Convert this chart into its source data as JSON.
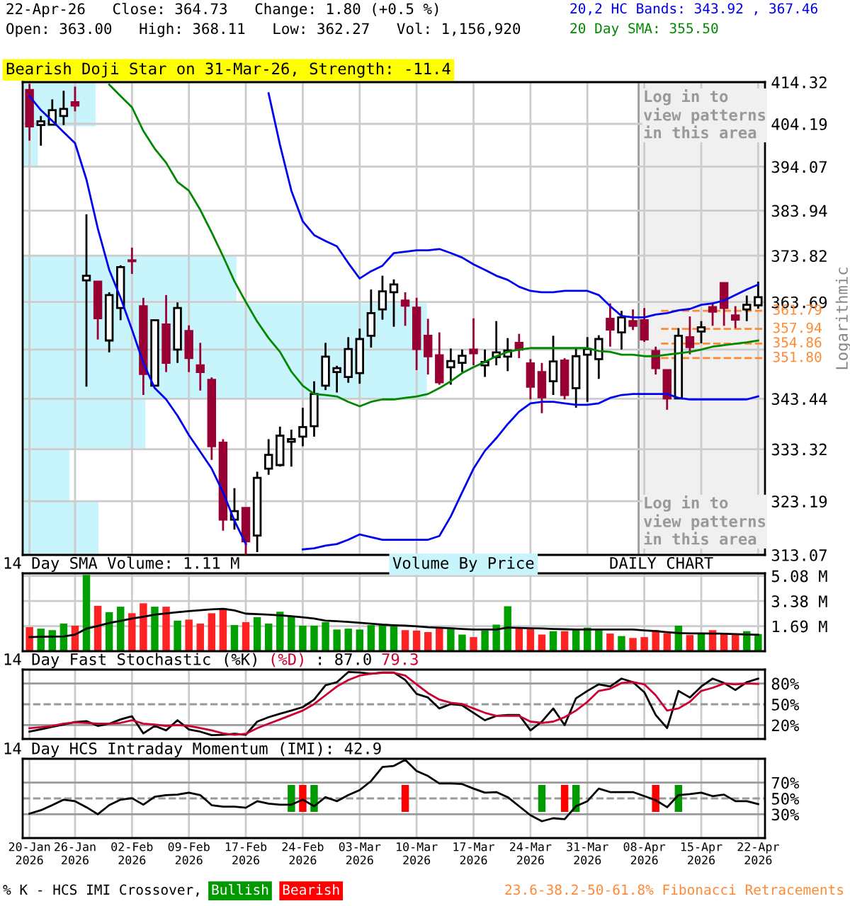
{
  "chart_data": [
    {
      "type": "candlestick",
      "title": "22-Apr-26   Close: 364.73   Change: 1.80 (+0.5 %)",
      "subtitle": "Open: 363.00   High: 368.11   Low: 362.27   Vol: 1,156,920",
      "ylabel": "Logarithmic",
      "categories": [
        "20-Jan\n2026",
        null,
        null,
        null,
        "26-Jan\n2026",
        null,
        null,
        null,
        null,
        "02-Feb\n2026",
        null,
        null,
        null,
        null,
        "09-Feb\n2026",
        null,
        null,
        null,
        null,
        "17-Feb\n2026",
        null,
        null,
        null,
        null,
        "24-Feb\n2026",
        null,
        null,
        null,
        null,
        "03-Mar\n2026",
        null,
        null,
        null,
        null,
        "10-Mar\n2026",
        null,
        null,
        null,
        null,
        "17-Mar\n2026",
        null,
        null,
        null,
        null,
        "24-Mar\n2026",
        null,
        null,
        null,
        null,
        "31-Mar\n2026",
        null,
        null,
        null,
        null,
        "08-Apr\n2026",
        null,
        null,
        null,
        null,
        "15-Apr\n2026",
        null,
        null,
        null,
        null,
        "22-Apr\n2026"
      ],
      "ohlc": [
        [
          412.4,
          413.9,
          400.2,
          403.6
        ],
        [
          403.9,
          406.1,
          399.0,
          404.8
        ],
        [
          404.0,
          410.1,
          403.9,
          407.5
        ],
        [
          406.1,
          412.2,
          403.9,
          407.8
        ],
        [
          409.4,
          413.2,
          407.2,
          408.6
        ],
        [
          368.4,
          383.1,
          345.9,
          369.4
        ],
        [
          368.1,
          368.1,
          355.7,
          360.2
        ],
        [
          355.5,
          365.8,
          353.0,
          365.2
        ],
        [
          362.4,
          371.7,
          359.8,
          371.3
        ],
        [
          372.8,
          375.6,
          369.8,
          372.6
        ],
        [
          362.8,
          364.6,
          344.2,
          348.5
        ],
        [
          346.1,
          359.8,
          346.1,
          359.8
        ],
        [
          358.9,
          365.2,
          348.9,
          350.8
        ],
        [
          353.6,
          363.6,
          350.8,
          362.4
        ],
        [
          357.5,
          358.7,
          348.9,
          351.8
        ],
        [
          350.3,
          355.0,
          345.1,
          348.9
        ],
        [
          347.3,
          347.8,
          331.2,
          333.9
        ],
        [
          334.6,
          335.3,
          317.6,
          319.7
        ],
        [
          319.7,
          325.7,
          317.8,
          321.3
        ],
        [
          321.9,
          321.9,
          313.1,
          315.6
        ],
        [
          316.7,
          328.9,
          313.6,
          327.7
        ],
        [
          329.5,
          335.3,
          328.3,
          332.2
        ],
        [
          330.2,
          337.8,
          329.9,
          336.0
        ],
        [
          334.8,
          337.2,
          329.9,
          335.3
        ],
        [
          335.8,
          341.6,
          333.9,
          337.7
        ],
        [
          337.9,
          347.0,
          335.8,
          344.4
        ],
        [
          346.1,
          355.0,
          345.2,
          352.1
        ],
        [
          348.9,
          350.2,
          344.7,
          349.7
        ],
        [
          347.9,
          356.2,
          346.7,
          353.7
        ],
        [
          348.7,
          358.0,
          346.5,
          355.8
        ],
        [
          356.5,
          366.4,
          354.0,
          361.3
        ],
        [
          362.1,
          369.4,
          359.9,
          366.0
        ],
        [
          365.8,
          368.6,
          358.4,
          367.5
        ],
        [
          364.0,
          365.8,
          358.6,
          362.9
        ],
        [
          362.5,
          364.6,
          349.3,
          353.7
        ],
        [
          356.5,
          360.1,
          348.4,
          352.2
        ],
        [
          352.4,
          357.2,
          346.3,
          346.8
        ],
        [
          349.9,
          353.8,
          346.3,
          351.2
        ],
        [
          350.8,
          353.6,
          348.9,
          352.3
        ],
        [
          353.6,
          360.2,
          350.3,
          352.8
        ],
        [
          350.3,
          353.6,
          347.9,
          351.0
        ],
        [
          352.0,
          359.6,
          350.3,
          353.0
        ],
        [
          352.1,
          356.0,
          349.1,
          353.4
        ],
        [
          355.0,
          356.9,
          351.8,
          353.6
        ],
        [
          350.7,
          351.6,
          343.3,
          345.9
        ],
        [
          348.9,
          350.8,
          340.5,
          343.7
        ],
        [
          347.0,
          356.5,
          344.2,
          351.1
        ],
        [
          351.3,
          351.8,
          343.3,
          344.2
        ],
        [
          345.6,
          353.9,
          341.6,
          352.2
        ],
        [
          352.5,
          356.2,
          342.8,
          353.7
        ],
        [
          351.6,
          356.6,
          347.5,
          355.8
        ],
        [
          360.1,
          363.4,
          354.2,
          357.8
        ],
        [
          357.2,
          361.8,
          353.6,
          360.4
        ],
        [
          359.6,
          362.1,
          357.7,
          358.6
        ],
        [
          359.8,
          362.4,
          355.2,
          355.7
        ],
        [
          353.3,
          354.2,
          348.4,
          349.7
        ],
        [
          349.3,
          349.3,
          341.2,
          343.5
        ],
        [
          343.5,
          358.1,
          343.5,
          356.5
        ],
        [
          356.2,
          360.6,
          352.6,
          354.1
        ],
        [
          357.4,
          359.6,
          354.9,
          358.3
        ],
        [
          362.6,
          363.6,
          358.6,
          361.6
        ],
        [
          367.8,
          367.8,
          358.6,
          362.4
        ],
        [
          360.8,
          362.8,
          358.1,
          359.9
        ],
        [
          362.1,
          365.1,
          359.6,
          363.1
        ],
        [
          363.0,
          368.11,
          362.27,
          364.73
        ]
      ],
      "colors": [
        "#990033",
        "#000000",
        "#000000",
        "#000000",
        "#990033",
        "#000000",
        "#990033",
        "#000000",
        "#000000",
        "#990033",
        "#990033",
        "#000000",
        "#990033",
        "#000000",
        "#990033",
        "#990033",
        "#990033",
        "#990033",
        "#000000",
        "#990033",
        "#000000",
        "#000000",
        "#000000",
        "#000000",
        "#000000",
        "#000000",
        "#000000",
        "#000000",
        "#000000",
        "#000000",
        "#000000",
        "#000000",
        "#000000",
        "#990033",
        "#990033",
        "#990033",
        "#990033",
        "#000000",
        "#000000",
        "#990033",
        "#000000",
        "#000000",
        "#000000",
        "#990033",
        "#990033",
        "#990033",
        "#000000",
        "#990033",
        "#000000",
        "#000000",
        "#000000",
        "#990033",
        "#000000",
        "#990033",
        "#990033",
        "#990033",
        "#990033",
        "#000000",
        "#990033",
        "#000000",
        "#990033",
        "#990033",
        "#990033",
        "#000000",
        "#000000"
      ],
      "series": [
        {
          "type": "line",
          "color": "#0000ee",
          "values": [
            null,
            null,
            null,
            null,
            null,
            null,
            null,
            null,
            null,
            null,
            null,
            null,
            null,
            null,
            null,
            null,
            null,
            null,
            null,
            null,
            null,
            411.6,
            399.2,
            388.5,
            381.5,
            378.4,
            377.1,
            375.9,
            372.2,
            368.8,
            370.4,
            371.6,
            374.4,
            374.7,
            375.0,
            375.0,
            375.3,
            374.4,
            373.4,
            371.9,
            370.7,
            369.4,
            368.5,
            367.0,
            366.1,
            365.8,
            365.8,
            366.1,
            366.1,
            366.1,
            365.2,
            362.8,
            360.7,
            360.4,
            360.4,
            361.0,
            361.3,
            361.9,
            362.2,
            363.1,
            363.4,
            364.0,
            365.2,
            366.4,
            367.46
          ]
        },
        {
          "type": "line",
          "color": "#0000ee",
          "values": [
            410.9,
            407.5,
            404.9,
            402.2,
            399.6,
            391.1,
            379.9,
            370.7,
            364.6,
            357.8,
            350.8,
            345.6,
            343.3,
            340.0,
            336.1,
            332.8,
            329.5,
            324.9,
            319.5,
            315.1,
            null,
            null,
            null,
            null,
            314.1,
            314.3,
            314.8,
            315.1,
            315.9,
            316.9,
            316.4,
            315.9,
            315.9,
            315.9,
            315.9,
            315.9,
            316.6,
            320.3,
            324.9,
            329.5,
            333.0,
            335.5,
            338.3,
            340.8,
            342.5,
            342.8,
            342.8,
            342.5,
            342.2,
            342.2,
            342.5,
            343.6,
            344.2,
            344.4,
            344.4,
            344.4,
            344.4,
            343.6,
            343.3,
            343.3,
            343.3,
            343.3,
            343.3,
            343.3,
            343.92
          ]
        },
        {
          "type": "line",
          "color": "#008800",
          "values": [
            null,
            null,
            null,
            null,
            null,
            null,
            null,
            413.7,
            410.9,
            408.2,
            402.5,
            398.3,
            395.0,
            390.5,
            388.5,
            384.1,
            379.0,
            373.7,
            368.2,
            363.7,
            359.5,
            356.0,
            353.1,
            349.0,
            346.1,
            344.4,
            344.2,
            343.9,
            342.8,
            341.9,
            342.8,
            343.3,
            343.3,
            343.6,
            343.9,
            344.4,
            345.6,
            347.0,
            348.7,
            349.9,
            351.0,
            352.2,
            353.1,
            353.6,
            353.9,
            353.9,
            353.9,
            353.9,
            353.9,
            353.9,
            353.3,
            353.1,
            352.5,
            352.5,
            352.2,
            352.2,
            352.5,
            352.8,
            353.1,
            353.6,
            354.2,
            354.5,
            354.8,
            355.1,
            355.5
          ]
        }
      ],
      "log": true,
      "ylim": [
        313.07,
        414.32
      ],
      "yticks": [
        414.32,
        404.19,
        394.07,
        383.94,
        373.82,
        363.69,
        {
          "value": 353.57,
          "label": null
        },
        343.44,
        333.32,
        323.19,
        313.07
      ],
      "grid": true,
      "tick_labels": "y",
      "ref_lines": [
        {
          "axis": "y",
          "value": 361.79,
          "label": "361.79",
          "color": "#ff8833",
          "line_style": "dashed"
        },
        {
          "axis": "y",
          "value": 357.94,
          "label": "357.94",
          "color": "#ff8833",
          "line_style": "dashed"
        },
        {
          "axis": "y",
          "value": 354.86,
          "label": "354.86",
          "color": "#ff8833",
          "line_style": "dashed"
        },
        {
          "axis": "y",
          "value": 351.8,
          "label": "351.80",
          "color": "#ff8833",
          "line_style": "dashed"
        }
      ],
      "bands": [
        {
          "axis": "x",
          "from": "08-Apr\n2026",
          "to": "22-Apr\n2026",
          "color": "#f0f0f0"
        }
      ],
      "annotations": [
        "20,2 HC Bands: 343.92 , 367.46",
        "20 Day SMA: 355.50",
        "Bearish Doji Star on 31-Mar-26, Strength: -11.4",
        "Log in to\nview patterns\nin this area",
        "Log in to\nview patterns\nin this area",
        "23.6-38.2-50-61.8% Fibonacci Retracements",
        "Volume By Price"
      ]
    },
    {
      "type": "bar",
      "title": "14 Day SMA Volume: 1.11 M",
      "categories": [
        "20-Jan\n2026",
        null,
        null,
        null,
        "26-Jan\n2026",
        null,
        null,
        null,
        null,
        "02-Feb\n2026",
        null,
        null,
        null,
        null,
        "09-Feb\n2026",
        null,
        null,
        null,
        null,
        "17-Feb\n2026",
        null,
        null,
        null,
        null,
        "24-Feb\n2026",
        null,
        null,
        null,
        null,
        "03-Mar\n2026",
        null,
        null,
        null,
        null,
        "10-Mar\n2026",
        null,
        null,
        null,
        null,
        "17-Mar\n2026",
        null,
        null,
        null,
        null,
        "24-Mar\n2026",
        null,
        null,
        null,
        null,
        "31-Mar\n2026",
        null,
        null,
        null,
        null,
        "08-Apr\n2026",
        null,
        null,
        null,
        null,
        "15-Apr\n2026",
        null,
        null,
        null,
        null,
        "22-Apr\n2026"
      ],
      "series": [
        {
          "type": "bar",
          "values": [
            1.62,
            1.52,
            1.42,
            1.86,
            1.72,
            5.14,
            3.06,
            2.63,
            3.0,
            2.56,
            3.23,
            3.0,
            3.0,
            2.06,
            2.13,
            1.86,
            2.56,
            2.9,
            1.76,
            1.96,
            2.29,
            1.86,
            2.66,
            2.36,
            1.72,
            1.72,
            1.96,
            1.46,
            1.52,
            1.46,
            1.76,
            1.76,
            1.76,
            1.42,
            1.39,
            1.29,
            1.56,
            1.56,
            1.12,
            0.95,
            1.39,
            1.79,
            3.03,
            1.56,
            1.56,
            1.12,
            1.35,
            1.35,
            1.46,
            1.59,
            1.46,
            1.19,
            1.02,
            0.89,
            0.95,
            1.42,
            1.22,
            1.72,
            1.09,
            1.22,
            1.42,
            1.22,
            1.12,
            1.35,
            1.16
          ],
          "colors": [
            "#ff2222",
            "#00a000",
            "#00a000",
            "#00a000",
            "#ff2222",
            "#00a000",
            "#ff2222",
            "#00a000",
            "#00a000",
            "#ff2222",
            "#ff2222",
            "#00a000",
            "#ff2222",
            "#00a000",
            "#ff2222",
            "#ff2222",
            "#ff2222",
            "#ff2222",
            "#00a000",
            "#ff2222",
            "#00a000",
            "#00a000",
            "#00a000",
            "#00a000",
            "#00a000",
            "#00a000",
            "#00a000",
            "#00a000",
            "#00a000",
            "#00a000",
            "#00a000",
            "#00a000",
            "#00a000",
            "#ff2222",
            "#ff2222",
            "#ff2222",
            "#ff2222",
            "#00a000",
            "#00a000",
            "#ff2222",
            "#00a000",
            "#00a000",
            "#00a000",
            "#ff2222",
            "#ff2222",
            "#ff2222",
            "#00a000",
            "#ff2222",
            "#00a000",
            "#00a000",
            "#00a000",
            "#ff2222",
            "#00a000",
            "#ff2222",
            "#ff2222",
            "#ff2222",
            "#ff2222",
            "#00a000",
            "#ff2222",
            "#00a000",
            "#ff2222",
            "#ff2222",
            "#ff2222",
            "#00a000",
            "#00a000"
          ]
        },
        {
          "type": "line",
          "color": "#000000",
          "values": [
            0.95,
            0.97,
            0.98,
            1.0,
            1.12,
            1.52,
            1.7,
            1.9,
            2.05,
            2.2,
            2.32,
            2.46,
            2.55,
            2.63,
            2.7,
            2.76,
            2.82,
            2.86,
            2.75,
            2.53,
            2.5,
            2.46,
            2.42,
            2.36,
            2.28,
            2.2,
            2.06,
            2.02,
            1.97,
            1.92,
            1.85,
            1.79,
            1.75,
            1.72,
            1.68,
            1.62,
            1.58,
            1.54,
            1.5,
            1.46,
            1.46,
            1.46,
            1.59,
            1.57,
            1.55,
            1.53,
            1.5,
            1.48,
            1.46,
            1.46,
            1.46,
            1.46,
            1.46,
            1.46,
            1.4,
            1.35,
            1.28,
            1.22,
            1.2,
            1.2,
            1.19,
            1.18,
            1.15,
            1.13,
            1.11
          ]
        }
      ],
      "ylim": [
        0,
        5.25
      ],
      "yticks": [
        {
          "value": 5.08,
          "label": "5.08 M"
        },
        {
          "value": 3.38,
          "label": "3.38 M"
        },
        {
          "value": 1.69,
          "label": "1.69 M"
        }
      ],
      "grid": true,
      "tick_labels": "y",
      "annotations": [
        "DAILY CHART"
      ]
    },
    {
      "type": "line",
      "title": "14 Day Fast Stochastic",
      "categories": [
        "20-Jan\n2026",
        null,
        null,
        null,
        "26-Jan\n2026",
        null,
        null,
        null,
        null,
        "02-Feb\n2026",
        null,
        null,
        null,
        null,
        "09-Feb\n2026",
        null,
        null,
        null,
        null,
        "17-Feb\n2026",
        null,
        null,
        null,
        null,
        "24-Feb\n2026",
        null,
        null,
        null,
        null,
        "03-Mar\n2026",
        null,
        null,
        null,
        null,
        "10-Mar\n2026",
        null,
        null,
        null,
        null,
        "17-Mar\n2026",
        null,
        null,
        null,
        null,
        "24-Mar\n2026",
        null,
        null,
        null,
        null,
        "31-Mar\n2026",
        null,
        null,
        null,
        null,
        "08-Apr\n2026",
        null,
        null,
        null,
        null,
        "15-Apr\n2026",
        null,
        null,
        null,
        null,
        "22-Apr\n2026"
      ],
      "series": [
        {
          "name": "(%K)",
          "color": "#000000",
          "values": [
            10.5,
            14,
            17.5,
            20.7,
            24.4,
            25.7,
            18.8,
            22,
            28.2,
            32.7,
            8,
            18.8,
            12.4,
            27,
            13.7,
            10.5,
            5.5,
            6.1,
            7.4,
            6.1,
            25,
            31.4,
            36.4,
            40.9,
            45.9,
            56.7,
            77.5,
            81.9,
            96.5,
            95.8,
            93.9,
            95.8,
            95.8,
            85,
            64.9,
            59.8,
            44,
            50.3,
            48.5,
            37.7,
            27,
            33.3,
            34.6,
            34.6,
            12.4,
            25,
            44,
            20,
            58.6,
            69.3,
            78.8,
            75.6,
            87,
            81.9,
            67.4,
            34.6,
            15.6,
            69.3,
            59.8,
            75.6,
            87,
            80.7,
            70.6,
            81.9,
            87.0
          ]
        },
        {
          "name": "(%D)",
          "color": "#cc0033",
          "values": [
            15.5,
            16.9,
            18.8,
            22,
            23.8,
            23.2,
            22,
            22,
            23.2,
            27,
            22,
            20.7,
            18.8,
            20,
            18.8,
            15.6,
            12.4,
            8,
            6.1,
            7.4,
            15.6,
            22,
            28.2,
            34.6,
            40.9,
            50.3,
            63,
            75.6,
            85,
            91.4,
            93.9,
            95.2,
            95.2,
            91.4,
            78.8,
            66.1,
            56.7,
            52.2,
            50.3,
            44,
            37.7,
            33.3,
            33.3,
            33.3,
            25,
            23.2,
            25,
            31.4,
            40.9,
            53.5,
            69.3,
            72.4,
            80.7,
            81.9,
            78.8,
            63,
            40.9,
            44,
            53.5,
            69.3,
            73.7,
            80,
            78.8,
            80,
            79.3
          ]
        }
      ],
      "ylim": [
        0,
        100
      ],
      "yticks": [
        {
          "value": 80,
          "label": "80%"
        },
        {
          "value": 50,
          "label": "50%"
        },
        {
          "value": 20,
          "label": "20%"
        }
      ],
      "grid": "x",
      "tick_labels": "y",
      "legend": "top",
      "ref_lines": [
        {
          "axis": "y",
          "value": 80,
          "color": "#999999"
        },
        {
          "axis": "y",
          "value": 50,
          "color": "#999999",
          "line_style": "dashed"
        },
        {
          "axis": "y",
          "value": 20,
          "color": "#999999"
        }
      ],
      "annotations": [
        ": 87.0",
        "79.3"
      ]
    },
    {
      "type": "line",
      "title": "14 Day HCS Intraday Momentum (IMI): 42.9",
      "legend_title": "% K - HCS IMI Crossover,",
      "categories": [
        "20-Jan\n2026",
        null,
        null,
        null,
        "26-Jan\n2026",
        null,
        null,
        null,
        null,
        "02-Feb\n2026",
        null,
        null,
        null,
        null,
        "09-Feb\n2026",
        null,
        null,
        null,
        null,
        "17-Feb\n2026",
        null,
        null,
        null,
        null,
        "24-Feb\n2026",
        null,
        null,
        null,
        null,
        "03-Mar\n2026",
        null,
        null,
        null,
        null,
        "10-Mar\n2026",
        null,
        null,
        null,
        null,
        "17-Mar\n2026",
        null,
        null,
        null,
        null,
        "24-Mar\n2026",
        null,
        null,
        null,
        null,
        "31-Mar\n2026",
        null,
        null,
        null,
        null,
        "08-Apr\n2026",
        null,
        null,
        null,
        null,
        "15-Apr\n2026",
        null,
        null,
        null,
        null,
        "22-Apr\n2026"
      ],
      "series": [
        {
          "color": "#000000",
          "values": [
            30.7,
            35.1,
            41.5,
            48.4,
            46.5,
            38.9,
            30,
            41.5,
            48.4,
            50.3,
            42.1,
            52.2,
            54.2,
            54.8,
            57.3,
            54.2,
            41.5,
            39.6,
            39.6,
            38.3,
            46.5,
            43.4,
            42.1,
            42.1,
            48.4,
            40.2,
            51.6,
            46.5,
            54.2,
            60.5,
            71.9,
            89.7,
            91,
            98.6,
            84.6,
            78.3,
            68.8,
            68.8,
            68.1,
            62.4,
            57.3,
            58,
            51.6,
            40.2,
            28.8,
            21.2,
            25,
            23.7,
            40.2,
            46.5,
            62.4,
            58,
            58,
            58,
            52.9,
            47.8,
            38.9,
            54.2,
            55.4,
            57.3,
            52.9,
            54.8,
            46.5,
            46.5,
            42.9
          ]
        },
        {
          "type": "bar",
          "name": "Bullish",
          "color": "#009900",
          "base": [
            null,
            null,
            null,
            null,
            null,
            null,
            null,
            null,
            null,
            null,
            null,
            null,
            null,
            null,
            null,
            null,
            null,
            null,
            null,
            null,
            null,
            null,
            null,
            33,
            null,
            33,
            null,
            null,
            null,
            null,
            null,
            null,
            null,
            null,
            null,
            null,
            null,
            null,
            null,
            null,
            null,
            null,
            null,
            null,
            null,
            33,
            null,
            null,
            33,
            null,
            null,
            null,
            null,
            null,
            null,
            null,
            null,
            33,
            null,
            null,
            null,
            null,
            null,
            null,
            null
          ],
          "values": [
            null,
            null,
            null,
            null,
            null,
            null,
            null,
            null,
            null,
            null,
            null,
            null,
            null,
            null,
            null,
            null,
            null,
            null,
            null,
            null,
            null,
            null,
            null,
            34,
            null,
            34,
            null,
            null,
            null,
            null,
            null,
            null,
            null,
            null,
            null,
            null,
            null,
            null,
            null,
            null,
            null,
            null,
            null,
            null,
            null,
            34,
            null,
            null,
            34,
            null,
            null,
            null,
            null,
            null,
            null,
            null,
            null,
            34,
            null,
            null,
            null,
            null,
            null,
            null,
            null
          ]
        },
        {
          "type": "bar",
          "name": "Bearish",
          "color": "#ff0000",
          "base": [
            null,
            null,
            null,
            null,
            null,
            null,
            null,
            null,
            null,
            null,
            null,
            null,
            null,
            null,
            null,
            null,
            null,
            null,
            null,
            null,
            null,
            null,
            null,
            null,
            33,
            null,
            null,
            null,
            null,
            null,
            null,
            null,
            null,
            33,
            null,
            null,
            null,
            null,
            null,
            null,
            null,
            null,
            null,
            null,
            null,
            null,
            null,
            33,
            null,
            null,
            null,
            null,
            null,
            null,
            null,
            33,
            null,
            null,
            null,
            null,
            null,
            null,
            null,
            null,
            null
          ],
          "values": [
            null,
            null,
            null,
            null,
            null,
            null,
            null,
            null,
            null,
            null,
            null,
            null,
            null,
            null,
            null,
            null,
            null,
            null,
            null,
            null,
            null,
            null,
            null,
            null,
            34,
            null,
            null,
            null,
            null,
            null,
            null,
            null,
            null,
            34,
            null,
            null,
            null,
            null,
            null,
            null,
            null,
            null,
            null,
            null,
            null,
            null,
            null,
            34,
            null,
            null,
            null,
            null,
            null,
            null,
            null,
            34,
            null,
            null,
            null,
            null,
            null,
            null,
            null,
            null,
            null
          ]
        }
      ],
      "ylim": [
        0,
        100
      ],
      "yticks": [
        {
          "value": 70,
          "label": "70%"
        },
        {
          "value": 50,
          "label": "50%"
        },
        {
          "value": 30,
          "label": "30%"
        }
      ],
      "grid": "x",
      "legend": "bottom",
      "ref_lines": [
        {
          "axis": "y",
          "value": 70,
          "color": "#999999"
        },
        {
          "axis": "y",
          "value": 50,
          "color": "#999999",
          "line_style": "dashed"
        },
        {
          "axis": "y",
          "value": 30,
          "color": "#999999"
        }
      ]
    }
  ]
}
